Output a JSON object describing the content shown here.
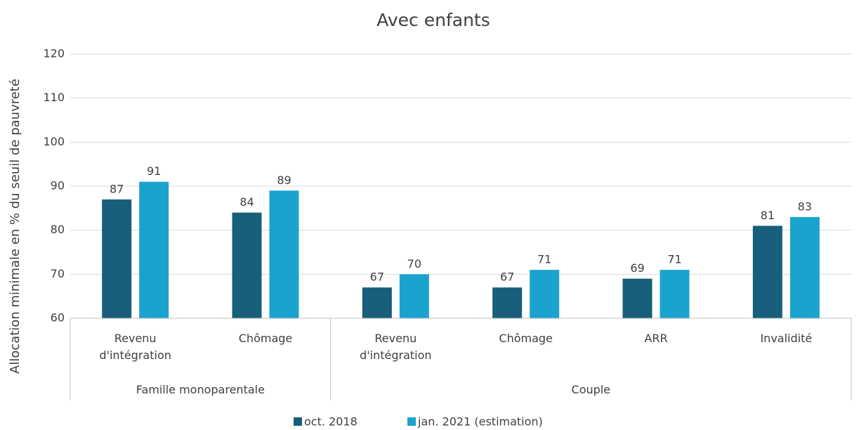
{
  "chart_data": {
    "type": "bar",
    "title": "Avec enfants",
    "y_label": "Allocation minimale en % du seuil de pauvreté",
    "groups": [
      {
        "name": "Famille monoparentale",
        "categories": [
          "Revenu d'intégration",
          "Chômage"
        ]
      },
      {
        "name": "Couple",
        "categories": [
          "Revenu d'intégration",
          "Chômage",
          "ARR",
          "Invalidité"
        ]
      }
    ],
    "series": [
      {
        "name": "oct. 2018",
        "color": "#175f7a",
        "values": [
          87,
          84,
          67,
          67,
          69,
          81
        ]
      },
      {
        "name": "jan. 2021 (estimation)",
        "color": "#1ba3cf",
        "values": [
          91,
          89,
          70,
          71,
          71,
          83
        ]
      }
    ],
    "ylim": [
      60,
      120
    ],
    "yticks": [
      60,
      70,
      80,
      90,
      100,
      110,
      120
    ],
    "grid": true,
    "legend": "bottom"
  }
}
